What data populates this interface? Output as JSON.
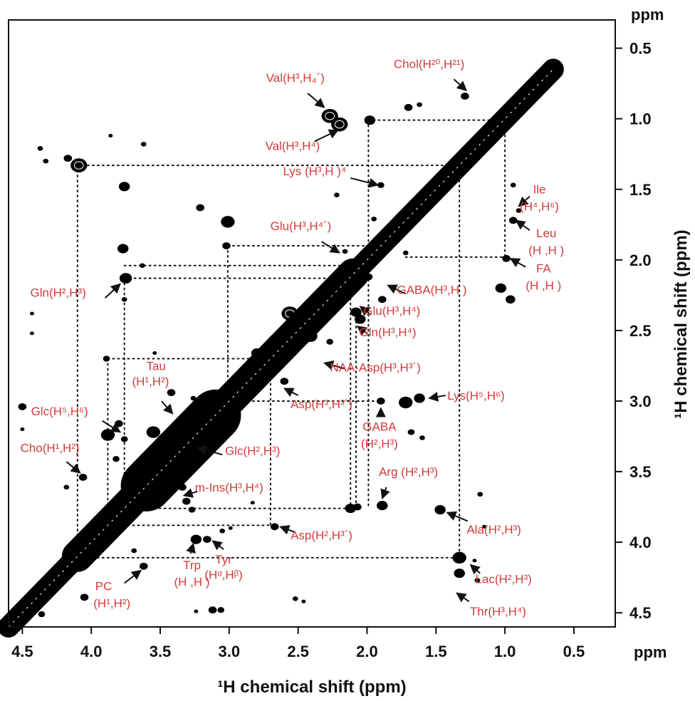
{
  "chart_data": {
    "type": "scatter",
    "subtype": "2D NMR contour map (1H-1H correlation)",
    "xlabel": "¹H chemical shift (ppm)",
    "ylabel": "¹H chemical shift (ppm)",
    "x_unit": "ppm",
    "y_unit": "ppm",
    "xlim": [
      4.6,
      0.2
    ],
    "ylim": [
      4.6,
      0.3
    ],
    "x_ticks": [
      "4.5",
      "4.0",
      "3.5",
      "3.0",
      "2.5",
      "2.0",
      "1.5",
      "1.0",
      "0.5"
    ],
    "y_ticks": [
      "0.5",
      "1.0",
      "1.5",
      "2.0",
      "2.5",
      "3.0",
      "3.5",
      "4.0",
      "4.5"
    ],
    "x_tick_values": [
      4.5,
      4.0,
      3.5,
      3.0,
      2.5,
      2.0,
      1.5,
      1.0,
      0.5
    ],
    "y_tick_values": [
      0.5,
      1.0,
      1.5,
      2.0,
      2.5,
      3.0,
      3.5,
      4.0,
      4.5
    ],
    "grid": false,
    "colors": {
      "peaks": "#000000",
      "labels": "#d23a3a",
      "axes": "#000000"
    },
    "diagonal": {
      "from": [
        4.6,
        4.6
      ],
      "to": [
        0.65,
        0.65
      ]
    },
    "peaks": [
      {
        "x": 2.27,
        "y": 0.98,
        "r": 0.06
      },
      {
        "x": 2.2,
        "y": 1.04,
        "r": 0.06
      },
      {
        "x": 1.98,
        "y": 1.01,
        "r": 0.04
      },
      {
        "x": 1.29,
        "y": 0.84,
        "r": 0.03
      },
      {
        "x": 1.7,
        "y": 0.92,
        "r": 0.03
      },
      {
        "x": 1.62,
        "y": 0.9,
        "r": 0.02
      },
      {
        "x": 4.09,
        "y": 1.33,
        "r": 0.06
      },
      {
        "x": 4.17,
        "y": 1.28,
        "r": 0.03
      },
      {
        "x": 4.33,
        "y": 1.3,
        "r": 0.02
      },
      {
        "x": 4.37,
        "y": 1.21,
        "r": 0.02
      },
      {
        "x": 3.62,
        "y": 1.18,
        "r": 0.02
      },
      {
        "x": 3.86,
        "y": 1.12,
        "r": 0.015
      },
      {
        "x": 3.01,
        "y": 1.73,
        "r": 0.05
      },
      {
        "x": 3.02,
        "y": 1.9,
        "r": 0.03
      },
      {
        "x": 3.21,
        "y": 1.63,
        "r": 0.03
      },
      {
        "x": 3.76,
        "y": 1.48,
        "r": 0.04
      },
      {
        "x": 3.77,
        "y": 1.92,
        "r": 0.04
      },
      {
        "x": 3.75,
        "y": 2.13,
        "r": 0.045
      },
      {
        "x": 3.63,
        "y": 2.04,
        "r": 0.02
      },
      {
        "x": 3.76,
        "y": 2.28,
        "r": 0.02
      },
      {
        "x": 1.9,
        "y": 1.47,
        "r": 0.025
      },
      {
        "x": 2.22,
        "y": 1.54,
        "r": 0.02
      },
      {
        "x": 1.3,
        "y": 1.26,
        "r": 0.02
      },
      {
        "x": 1.95,
        "y": 1.71,
        "r": 0.02
      },
      {
        "x": 1.72,
        "y": 1.95,
        "r": 0.02
      },
      {
        "x": 0.94,
        "y": 1.47,
        "r": 0.02
      },
      {
        "x": 0.9,
        "y": 1.65,
        "r": 0.02
      },
      {
        "x": 0.94,
        "y": 1.72,
        "r": 0.03
      },
      {
        "x": 0.99,
        "y": 1.99,
        "r": 0.03
      },
      {
        "x": 1.03,
        "y": 2.2,
        "r": 0.04
      },
      {
        "x": 0.96,
        "y": 2.28,
        "r": 0.035
      },
      {
        "x": 1.99,
        "y": 2.12,
        "r": 0.03
      },
      {
        "x": 1.89,
        "y": 2.28,
        "r": 0.03
      },
      {
        "x": 2.08,
        "y": 2.37,
        "r": 0.04
      },
      {
        "x": 2.05,
        "y": 2.42,
        "r": 0.04
      },
      {
        "x": 2.03,
        "y": 2.14,
        "r": 0.03
      },
      {
        "x": 2.16,
        "y": 1.94,
        "r": 0.02
      },
      {
        "x": 2.56,
        "y": 2.38,
        "r": 0.06
      },
      {
        "x": 2.41,
        "y": 2.54,
        "r": 0.05
      },
      {
        "x": 2.66,
        "y": 2.7,
        "r": 0.05
      },
      {
        "x": 2.8,
        "y": 2.66,
        "r": 0.04
      },
      {
        "x": 2.56,
        "y": 2.64,
        "r": 0.04
      },
      {
        "x": 2.27,
        "y": 2.58,
        "r": 0.025
      },
      {
        "x": 2.6,
        "y": 2.86,
        "r": 0.03
      },
      {
        "x": 2.65,
        "y": 2.77,
        "r": 0.02
      },
      {
        "x": 1.72,
        "y": 3.01,
        "r": 0.05
      },
      {
        "x": 1.62,
        "y": 2.98,
        "r": 0.04
      },
      {
        "x": 1.9,
        "y": 3.0,
        "r": 0.03
      },
      {
        "x": 1.68,
        "y": 3.22,
        "r": 0.025
      },
      {
        "x": 1.6,
        "y": 3.26,
        "r": 0.02
      },
      {
        "x": 3.89,
        "y": 2.7,
        "r": 0.025
      },
      {
        "x": 3.54,
        "y": 2.66,
        "r": 0.015
      },
      {
        "x": 3.42,
        "y": 2.94,
        "r": 0.03
      },
      {
        "x": 3.26,
        "y": 2.98,
        "r": 0.02
      },
      {
        "x": 3.88,
        "y": 3.24,
        "r": 0.05
      },
      {
        "x": 3.8,
        "y": 3.16,
        "r": 0.03
      },
      {
        "x": 3.76,
        "y": 3.27,
        "r": 0.025
      },
      {
        "x": 3.82,
        "y": 3.41,
        "r": 0.025
      },
      {
        "x": 4.5,
        "y": 3.04,
        "r": 0.03
      },
      {
        "x": 4.5,
        "y": 3.2,
        "r": 0.015
      },
      {
        "x": 4.06,
        "y": 3.54,
        "r": 0.03
      },
      {
        "x": 4.18,
        "y": 3.61,
        "r": 0.02
      },
      {
        "x": 3.44,
        "y": 3.27,
        "r": 0.07
      },
      {
        "x": 3.29,
        "y": 3.42,
        "r": 0.06
      },
      {
        "x": 3.55,
        "y": 3.22,
        "r": 0.05
      },
      {
        "x": 3.24,
        "y": 3.09,
        "r": 0.05
      },
      {
        "x": 3.31,
        "y": 3.71,
        "r": 0.03
      },
      {
        "x": 3.27,
        "y": 3.77,
        "r": 0.025
      },
      {
        "x": 3.34,
        "y": 3.61,
        "r": 0.03
      },
      {
        "x": 2.12,
        "y": 3.76,
        "r": 0.04
      },
      {
        "x": 2.07,
        "y": 3.75,
        "r": 0.03
      },
      {
        "x": 1.89,
        "y": 3.74,
        "r": 0.04
      },
      {
        "x": 1.47,
        "y": 3.77,
        "r": 0.04
      },
      {
        "x": 1.18,
        "y": 3.66,
        "r": 0.02
      },
      {
        "x": 1.15,
        "y": 3.89,
        "r": 0.015
      },
      {
        "x": 2.67,
        "y": 3.89,
        "r": 0.03
      },
      {
        "x": 2.83,
        "y": 3.72,
        "r": 0.015
      },
      {
        "x": 2.99,
        "y": 3.9,
        "r": 0.015
      },
      {
        "x": 3.24,
        "y": 3.98,
        "r": 0.04
      },
      {
        "x": 3.16,
        "y": 3.98,
        "r": 0.03
      },
      {
        "x": 3.05,
        "y": 3.92,
        "r": 0.02
      },
      {
        "x": 3.62,
        "y": 4.17,
        "r": 0.03
      },
      {
        "x": 3.69,
        "y": 4.06,
        "r": 0.02
      },
      {
        "x": 4.05,
        "y": 4.39,
        "r": 0.03
      },
      {
        "x": 1.33,
        "y": 4.11,
        "r": 0.05
      },
      {
        "x": 1.33,
        "y": 4.22,
        "r": 0.04
      },
      {
        "x": 1.2,
        "y": 4.27,
        "r": 0.02
      },
      {
        "x": 1.22,
        "y": 4.13,
        "r": 0.015
      },
      {
        "x": 3.12,
        "y": 4.48,
        "r": 0.03
      },
      {
        "x": 3.06,
        "y": 4.48,
        "r": 0.025
      },
      {
        "x": 3.24,
        "y": 4.49,
        "r": 0.015
      },
      {
        "x": 2.52,
        "y": 4.4,
        "r": 0.02
      },
      {
        "x": 2.46,
        "y": 4.42,
        "r": 0.015
      },
      {
        "x": 4.36,
        "y": 4.51,
        "r": 0.025
      },
      {
        "x": 4.5,
        "y": 4.42,
        "r": 0.02
      },
      {
        "x": 4.43,
        "y": 2.38,
        "r": 0.01
      },
      {
        "x": 4.43,
        "y": 2.52,
        "r": 0.01
      },
      {
        "x": 0.62,
        "y": 0.68,
        "r": 0.015
      }
    ],
    "dotted_lines": [
      {
        "x1": 1.99,
        "y1": 1.01,
        "x2": 1.0,
        "y2": 1.01
      },
      {
        "x1": 1.99,
        "y1": 1.01,
        "x2": 1.99,
        "y2": 3.76
      },
      {
        "x1": 1.0,
        "y1": 1.01,
        "x2": 1.0,
        "y2": 1.98
      },
      {
        "x1": 4.1,
        "y1": 1.33,
        "x2": 1.33,
        "y2": 1.33
      },
      {
        "x1": 4.1,
        "y1": 1.33,
        "x2": 4.1,
        "y2": 4.11
      },
      {
        "x1": 1.33,
        "y1": 1.33,
        "x2": 1.33,
        "y2": 4.11
      },
      {
        "x1": 3.01,
        "y1": 1.9,
        "x2": 1.9,
        "y2": 1.9
      },
      {
        "x1": 3.01,
        "y1": 1.9,
        "x2": 3.01,
        "y2": 3.0
      },
      {
        "x1": 1.72,
        "y1": 1.98,
        "x2": 1.0,
        "y2": 1.98
      },
      {
        "x1": 3.76,
        "y1": 2.04,
        "x2": 2.05,
        "y2": 2.04
      },
      {
        "x1": 3.76,
        "y1": 2.13,
        "x2": 2.12,
        "y2": 2.13
      },
      {
        "x1": 3.76,
        "y1": 2.13,
        "x2": 3.76,
        "y2": 3.76
      },
      {
        "x1": 2.12,
        "y1": 2.13,
        "x2": 2.12,
        "y2": 3.76
      },
      {
        "x1": 3.88,
        "y1": 2.7,
        "x2": 2.7,
        "y2": 2.7
      },
      {
        "x1": 3.88,
        "y1": 2.7,
        "x2": 3.88,
        "y2": 3.88
      },
      {
        "x1": 3.01,
        "y1": 3.0,
        "x2": 1.9,
        "y2": 3.0
      },
      {
        "x1": 2.7,
        "y1": 2.7,
        "x2": 2.7,
        "y2": 3.89
      },
      {
        "x1": 2.08,
        "y1": 2.4,
        "x2": 2.08,
        "y2": 3.76
      },
      {
        "x1": 3.76,
        "y1": 3.76,
        "x2": 2.12,
        "y2": 3.76
      },
      {
        "x1": 3.88,
        "y1": 3.88,
        "x2": 2.67,
        "y2": 3.88
      },
      {
        "x1": 4.1,
        "y1": 4.11,
        "x2": 1.33,
        "y2": 4.11
      }
    ],
    "annotations": [
      {
        "id": "val1",
        "text": "Val(H³,H₄´)",
        "x": 2.52,
        "y": 0.74,
        "ax1": 2.43,
        "ay1": 0.82,
        "ax2": 2.31,
        "ay2": 0.92
      },
      {
        "id": "chol",
        "text": "Chol(H²⁰,H²¹)",
        "x": 1.55,
        "y": 0.64,
        "ax1": 1.37,
        "ay1": 0.72,
        "ax2": 1.28,
        "ay2": 0.8
      },
      {
        "id": "val2",
        "text": "Val(H³,H⁴)",
        "x": 2.54,
        "y": 1.22,
        "ax1": 2.38,
        "ay1": 1.16,
        "ax2": 2.21,
        "ay2": 1.08
      },
      {
        "id": "lys1",
        "text": "Lys (H³,H )⁴",
        "x": 2.38,
        "y": 1.4,
        "ax1": 2.12,
        "ay1": 1.42,
        "ax2": 1.92,
        "ay2": 1.47
      },
      {
        "id": "ile",
        "text": "Ile",
        "x": 0.75,
        "y": 1.53,
        "ax1": 0.82,
        "ay1": 1.55,
        "ax2": 0.9,
        "ay2": 1.62
      },
      {
        "id": "ile2",
        "text": "(H⁴,H⁶)",
        "x": 0.75,
        "y": 1.65,
        "ax1": 0,
        "ay1": 0,
        "ax2": 0,
        "ay2": 0
      },
      {
        "id": "leu",
        "text": "Leu",
        "x": 0.7,
        "y": 1.84,
        "ax1": 0.82,
        "ay1": 1.79,
        "ax2": 0.92,
        "ay2": 1.72
      },
      {
        "id": "leu2",
        "text": "(H ,H )",
        "x": 0.7,
        "y": 1.96,
        "ax1": 0,
        "ay1": 0,
        "ax2": 0,
        "ay2": 0
      },
      {
        "id": "fa",
        "text": "FA",
        "x": 0.72,
        "y": 2.09,
        "ax1": 0.85,
        "ay1": 2.05,
        "ax2": 0.96,
        "ay2": 1.99
      },
      {
        "id": "fa2",
        "text": "(H ,H )",
        "x": 0.72,
        "y": 2.21,
        "ax1": 0,
        "ay1": 0,
        "ax2": 0,
        "ay2": 0
      },
      {
        "id": "glu1",
        "text": "Glu(H³,H⁴´)",
        "x": 2.48,
        "y": 1.79,
        "ax1": 2.33,
        "ay1": 1.87,
        "ax2": 2.2,
        "ay2": 1.95
      },
      {
        "id": "gln1",
        "text": "Gln(H²,H³)",
        "x": 4.24,
        "y": 2.26,
        "ax1": 3.9,
        "ay1": 2.27,
        "ax2": 3.79,
        "ay2": 2.17
      },
      {
        "id": "gaba1",
        "text": "GABA(H³,H )",
        "x": 1.53,
        "y": 2.24,
        "ax1": 1.72,
        "ay1": 2.24,
        "ax2": 1.85,
        "ay2": 2.18
      },
      {
        "id": "glu2",
        "text": "Glu(H³,H⁴)",
        "x": 1.82,
        "y": 2.39,
        "ax1": 1.97,
        "ay1": 2.39,
        "ax2": 2.05,
        "ay2": 2.33
      },
      {
        "id": "gln2",
        "text": "Gln(H³,H⁴)",
        "x": 1.85,
        "y": 2.54,
        "ax1": 2.0,
        "ay1": 2.52,
        "ax2": 2.07,
        "ay2": 2.47
      },
      {
        "id": "naa",
        "text": "NAA-Asp(H³,H³´)",
        "x": 1.94,
        "y": 2.79,
        "ax1": 2.16,
        "ay1": 2.77,
        "ax2": 2.31,
        "ay2": 2.73
      },
      {
        "id": "tau",
        "text": "Tau",
        "x": 3.53,
        "y": 2.78,
        "ax1": 0,
        "ay1": 0,
        "ax2": 0,
        "ay2": 0
      },
      {
        "id": "tau2",
        "text": "(H¹,H²)",
        "x": 3.57,
        "y": 2.89,
        "ax1": 3.49,
        "ay1": 3.0,
        "ax2": 3.41,
        "ay2": 3.09
      },
      {
        "id": "asp1",
        "text": "Asp(H³,H³´)",
        "x": 2.33,
        "y": 3.05,
        "ax1": 2.5,
        "ay1": 2.96,
        "ax2": 2.6,
        "ay2": 2.91
      },
      {
        "id": "lys2",
        "text": "Lys(H⁵,H⁶)",
        "x": 1.21,
        "y": 2.99,
        "ax1": 1.43,
        "ay1": 2.96,
        "ax2": 1.55,
        "ay2": 2.98
      },
      {
        "id": "glc1",
        "text": "Glc(H⁵,H⁶)",
        "x": 4.23,
        "y": 3.1,
        "ax1": 3.92,
        "ay1": 3.14,
        "ax2": 3.79,
        "ay2": 3.22
      },
      {
        "id": "gaba2",
        "text": "GABA",
        "x": 1.91,
        "y": 3.21,
        "ax1": 1.9,
        "ay1": 3.09,
        "ax2": 1.9,
        "ay2": 3.05
      },
      {
        "id": "gaba3",
        "text": "(H²,H³)",
        "x": 1.91,
        "y": 3.33,
        "ax1": 0,
        "ay1": 0,
        "ax2": 0,
        "ay2": 0
      },
      {
        "id": "cho",
        "text": "Cho(H¹,H²)",
        "x": 4.3,
        "y": 3.36,
        "ax1": 4.18,
        "ay1": 3.43,
        "ax2": 4.08,
        "ay2": 3.51
      },
      {
        "id": "glc2",
        "text": "Glc(H²,H³)",
        "x": 2.83,
        "y": 3.38,
        "ax1": 3.05,
        "ay1": 3.38,
        "ax2": 3.23,
        "ay2": 3.33
      },
      {
        "id": "arg",
        "text": "Arg (H²,H³)",
        "x": 1.7,
        "y": 3.53,
        "ax1": 1.86,
        "ay1": 3.61,
        "ax2": 1.89,
        "ay2": 3.69
      },
      {
        "id": "mins",
        "text": "m-Ins(H³,H⁴)",
        "x": 3.0,
        "y": 3.64,
        "ax1": 3.23,
        "ay1": 3.64,
        "ax2": 3.33,
        "ay2": 3.67
      },
      {
        "id": "ala",
        "text": "Ala(H²,H³)",
        "x": 1.08,
        "y": 3.94,
        "ax1": 1.27,
        "ay1": 3.85,
        "ax2": 1.42,
        "ay2": 3.79
      },
      {
        "id": "asp2",
        "text": "Asp(H²,H³´)",
        "x": 2.33,
        "y": 3.98,
        "ax1": 2.52,
        "ay1": 3.93,
        "ax2": 2.63,
        "ay2": 3.89
      },
      {
        "id": "trp",
        "text": "Trp",
        "x": 3.27,
        "y": 4.19,
        "ax1": 3.28,
        "ay1": 4.08,
        "ax2": 3.26,
        "ay2": 4.01
      },
      {
        "id": "trp2",
        "text": "(H ,H )",
        "x": 3.27,
        "y": 4.31,
        "ax1": 0,
        "ay1": 0,
        "ax2": 0,
        "ay2": 0
      },
      {
        "id": "tyr",
        "text": "Tyr",
        "x": 3.04,
        "y": 4.15,
        "ax1": 3.04,
        "ay1": 4.05,
        "ax2": 3.12,
        "ay2": 3.99
      },
      {
        "id": "tyr2",
        "text": "(Hᵅ,Hᵝ)",
        "x": 3.04,
        "y": 4.26,
        "ax1": 0,
        "ay1": 0,
        "ax2": 0,
        "ay2": 0
      },
      {
        "id": "pc",
        "text": "PC",
        "x": 3.91,
        "y": 4.34,
        "ax1": 3.76,
        "ay1": 4.29,
        "ax2": 3.64,
        "ay2": 4.2
      },
      {
        "id": "pc2",
        "text": "(H¹,H²)",
        "x": 3.85,
        "y": 4.46,
        "ax1": 0,
        "ay1": 0,
        "ax2": 0,
        "ay2": 0
      },
      {
        "id": "lac",
        "text": "Lac(H²,H³)",
        "x": 1.01,
        "y": 4.29,
        "ax1": 1.18,
        "ay1": 4.22,
        "ax2": 1.25,
        "ay2": 4.16
      },
      {
        "id": "thr",
        "text": "Thr(H³,H⁴)",
        "x": 1.05,
        "y": 4.52,
        "ax1": 1.26,
        "ay1": 4.42,
        "ax2": 1.35,
        "ay2": 4.36
      }
    ]
  },
  "labels": {
    "x_axis_title": "¹H chemical shift (ppm)",
    "y_axis_title": "¹H chemical shift (ppm)",
    "x_unit": "ppm",
    "y_unit": "ppm"
  }
}
